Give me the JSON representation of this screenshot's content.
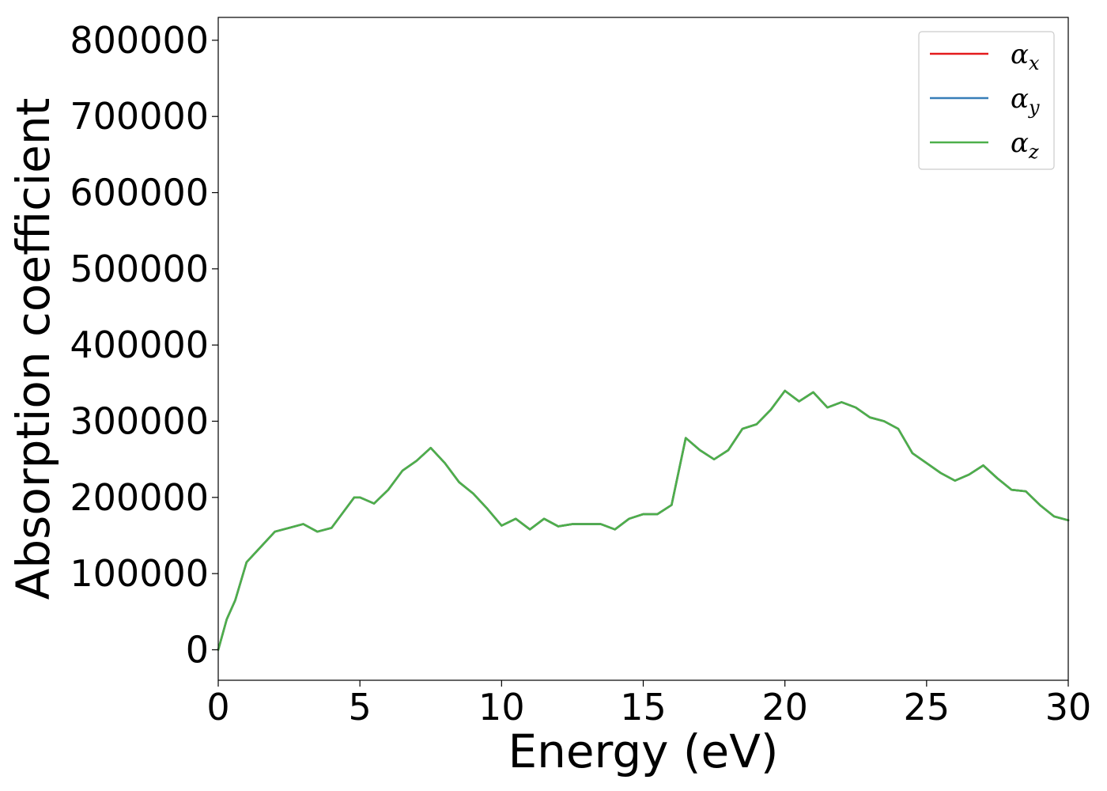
{
  "chart_data": {
    "type": "line",
    "xlabel": "Energy (eV)",
    "ylabel": "Absorption coefficient",
    "xlim": [
      0,
      30
    ],
    "ylim": [
      -40000,
      830000
    ],
    "xticks": [
      "0",
      "5",
      "10",
      "15",
      "20",
      "25",
      "30"
    ],
    "yticks": [
      "0",
      "100000",
      "200000",
      "300000",
      "400000",
      "500000",
      "600000",
      "700000",
      "800000"
    ],
    "grid": false,
    "legend_position": "top-right",
    "x": [
      0,
      0.3,
      0.6,
      1.0,
      1.5,
      2.0,
      2.5,
      3.0,
      3.5,
      4.0,
      4.5,
      4.8,
      5.0,
      5.5,
      6.0,
      6.5,
      7.0,
      7.5,
      8.0,
      8.5,
      9.0,
      9.5,
      10.0,
      10.5,
      11.0,
      11.5,
      12.0,
      12.5,
      13.0,
      13.5,
      14.0,
      14.5,
      15.0,
      15.5,
      16.0,
      16.5,
      17.0,
      17.5,
      18.0,
      18.5,
      19.0,
      19.5,
      20.0,
      20.5,
      21.0,
      21.5,
      22.0,
      22.5,
      23.0,
      23.5,
      24.0,
      24.5,
      25.0,
      25.5,
      26.0,
      26.5,
      27.0,
      27.5,
      28.0,
      28.5,
      29.0,
      29.5,
      30.0
    ],
    "series": [
      {
        "name": "x",
        "color": "#e41a1c",
        "values": [
          0,
          40000,
          65000,
          115000,
          135000,
          155000,
          160000,
          165000,
          155000,
          160000,
          185000,
          200000,
          200000,
          192000,
          210000,
          235000,
          248000,
          265000,
          245000,
          220000,
          205000,
          185000,
          163000,
          172000,
          158000,
          172000,
          162000,
          165000,
          165000,
          165000,
          158000,
          172000,
          178000,
          178000,
          190000,
          278000,
          262000,
          250000,
          262000,
          290000,
          296000,
          315000,
          340000,
          326000,
          338000,
          318000,
          325000,
          318000,
          305000,
          300000,
          290000,
          258000,
          245000,
          232000,
          222000,
          230000,
          242000,
          225000,
          210000,
          208000,
          190000,
          175000,
          170000
        ]
      },
      {
        "name": "y",
        "color": "#377eb8",
        "values": [
          0,
          40000,
          65000,
          115000,
          135000,
          155000,
          160000,
          165000,
          155000,
          160000,
          185000,
          200000,
          200000,
          192000,
          210000,
          235000,
          248000,
          265000,
          245000,
          220000,
          205000,
          185000,
          163000,
          172000,
          158000,
          172000,
          162000,
          165000,
          165000,
          165000,
          158000,
          172000,
          178000,
          178000,
          190000,
          278000,
          262000,
          250000,
          262000,
          290000,
          296000,
          315000,
          340000,
          326000,
          338000,
          318000,
          325000,
          318000,
          305000,
          300000,
          290000,
          258000,
          245000,
          232000,
          222000,
          230000,
          242000,
          225000,
          210000,
          208000,
          190000,
          175000,
          170000
        ]
      },
      {
        "name": "z",
        "color": "#4daf4a",
        "values": [
          0,
          40000,
          65000,
          115000,
          135000,
          155000,
          160000,
          165000,
          155000,
          160000,
          185000,
          200000,
          200000,
          192000,
          210000,
          235000,
          248000,
          265000,
          245000,
          220000,
          205000,
          185000,
          163000,
          172000,
          158000,
          172000,
          162000,
          165000,
          165000,
          165000,
          158000,
          172000,
          178000,
          178000,
          190000,
          278000,
          262000,
          250000,
          262000,
          290000,
          296000,
          315000,
          340000,
          326000,
          338000,
          318000,
          325000,
          318000,
          305000,
          300000,
          290000,
          258000,
          245000,
          232000,
          222000,
          230000,
          242000,
          225000,
          210000,
          208000,
          190000,
          175000,
          170000
        ]
      }
    ],
    "legend_symbol": "α"
  }
}
